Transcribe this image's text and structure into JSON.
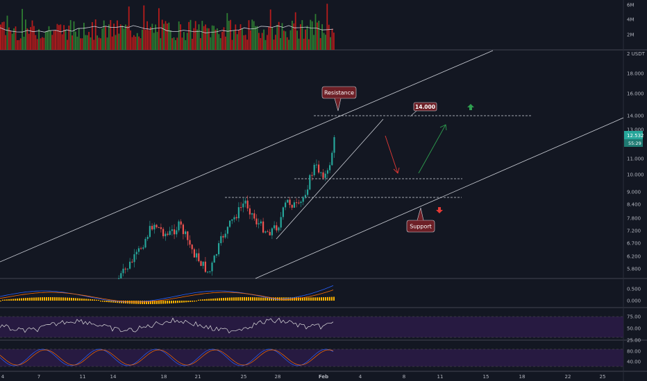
{
  "theme": {
    "background": "#131722",
    "up": "#26a69a",
    "down": "#ef5350",
    "vol_up": "#2e7d32",
    "vol_down": "#b71c1c",
    "line": "#d1d4dc",
    "macd_line": "#2962ff",
    "signal_line": "#ff6d00",
    "hist": "#ffb300",
    "osc_band": "#3c1f63"
  },
  "price_axis": {
    "unit_label": "2 USDT",
    "ticks": [
      "18.000",
      "16.000",
      "14.000",
      "13.000",
      "11.000",
      "10.000",
      "9.000",
      "8.400",
      "7.800",
      "7.200",
      "6.700",
      "6.200",
      "5.800"
    ]
  },
  "badges": {
    "last_price": "12.532",
    "countdown": "55:29",
    "target_price": "14.000"
  },
  "annotations": {
    "resistance": "Resistance",
    "support": "Support"
  },
  "volume_axis": {
    "ticks": [
      "6M",
      "4M",
      "2M"
    ]
  },
  "macd_axis": {
    "ticks": [
      "0.500",
      "0.000"
    ]
  },
  "rsi_axis": {
    "ticks": [
      "75.00",
      "50.00",
      "25.00"
    ]
  },
  "stoch_axis": {
    "ticks": [
      "80.00",
      "40.00"
    ]
  },
  "time_axis": {
    "ticks": [
      "4",
      "7",
      "11",
      "14",
      "18",
      "21",
      "25",
      "28",
      "Feb",
      "4",
      "8",
      "11",
      "15",
      "18",
      "22",
      "25"
    ]
  },
  "chart_data": {
    "type": "candlestick",
    "candles_last_close": 12.532,
    "levels": [
      14.0,
      9.8,
      8.75
    ],
    "notes": [
      "Resistance",
      "Support"
    ]
  }
}
